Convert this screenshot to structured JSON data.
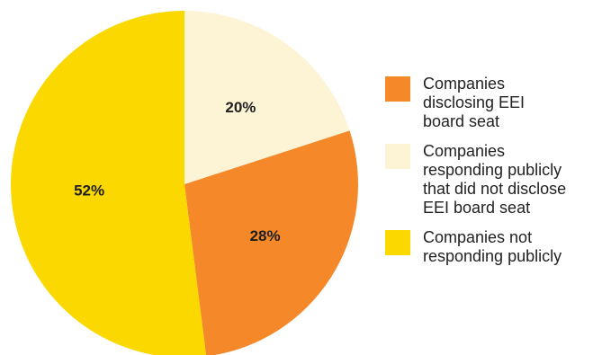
{
  "chart_data": {
    "type": "pie",
    "title": "",
    "slices": [
      {
        "label": "Companies disclosing EEI board seat",
        "value": 28,
        "display": "28%",
        "color": "#f5892a"
      },
      {
        "label": "Companies responding publicly that did not disclose EEI board seat",
        "value": 20,
        "display": "20%",
        "color": "#fdf4d6"
      },
      {
        "label": "Companies not responding publicly",
        "value": 52,
        "display": "52%",
        "color": "#fbd800"
      }
    ],
    "legend": {
      "position": "right",
      "items": [
        {
          "label": "Companies disclosing EEI board seat",
          "color": "#f5892a"
        },
        {
          "label": "Companies responding publicly that did not disclose EEI board seat",
          "color": "#fdf4d6"
        },
        {
          "label": "Companies not responding publicly",
          "color": "#fbd800"
        }
      ]
    }
  }
}
